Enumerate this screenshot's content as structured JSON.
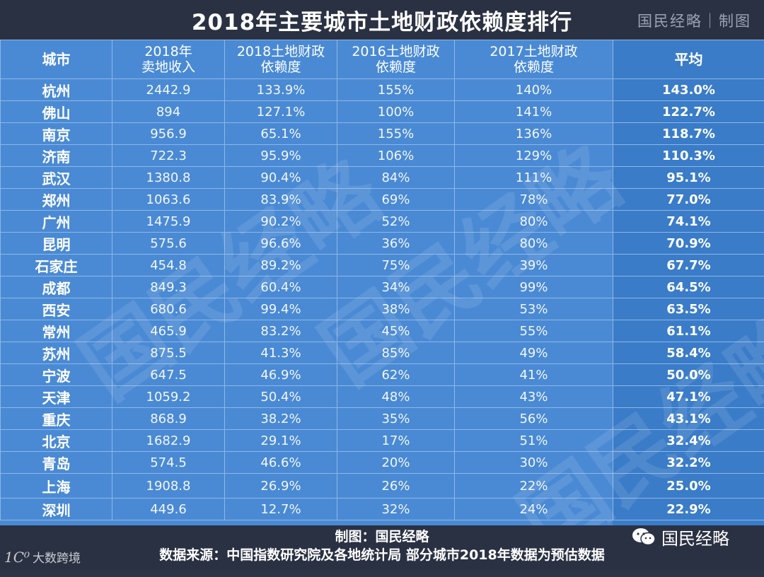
{
  "header": {
    "title": "2018年主要城市土地财政依赖度排行",
    "brand": "国民经略｜制图"
  },
  "chart_data": {
    "type": "table",
    "title": "2018年主要城市土地财政依赖度排行",
    "columns": [
      "城市",
      "2018年 卖地收入",
      "2018土地财政 依赖度",
      "2016土地财政 依赖度",
      "2017土地财政 依赖度",
      "平均"
    ],
    "rows": [
      [
        "杭州",
        "2442.9",
        "133.9%",
        "155%",
        "140%",
        "143.0%"
      ],
      [
        "佛山",
        "894",
        "127.1%",
        "100%",
        "141%",
        "122.7%"
      ],
      [
        "南京",
        "956.9",
        "65.1%",
        "155%",
        "136%",
        "118.7%"
      ],
      [
        "济南",
        "722.3",
        "95.9%",
        "106%",
        "129%",
        "110.3%"
      ],
      [
        "武汉",
        "1380.8",
        "90.4%",
        "84%",
        "111%",
        "95.1%"
      ],
      [
        "郑州",
        "1063.6",
        "83.9%",
        "69%",
        "78%",
        "77.0%"
      ],
      [
        "广州",
        "1475.9",
        "90.2%",
        "52%",
        "80%",
        "74.1%"
      ],
      [
        "昆明",
        "575.6",
        "96.6%",
        "36%",
        "80%",
        "70.9%"
      ],
      [
        "石家庄",
        "454.8",
        "89.2%",
        "75%",
        "39%",
        "67.7%"
      ],
      [
        "成都",
        "849.3",
        "60.4%",
        "34%",
        "99%",
        "64.5%"
      ],
      [
        "西安",
        "680.6",
        "99.4%",
        "38%",
        "53%",
        "63.5%"
      ],
      [
        "常州",
        "465.9",
        "83.2%",
        "45%",
        "55%",
        "61.1%"
      ],
      [
        "苏州",
        "875.5",
        "41.3%",
        "85%",
        "49%",
        "58.4%"
      ],
      [
        "宁波",
        "647.5",
        "46.9%",
        "62%",
        "41%",
        "50.0%"
      ],
      [
        "天津",
        "1059.2",
        "50.4%",
        "48%",
        "43%",
        "47.1%"
      ],
      [
        "重庆",
        "868.9",
        "38.2%",
        "35%",
        "56%",
        "43.1%"
      ],
      [
        "北京",
        "1682.9",
        "29.1%",
        "17%",
        "51%",
        "32.4%"
      ],
      [
        "青岛",
        "574.5",
        "46.6%",
        "20%",
        "30%",
        "32.2%"
      ],
      [
        "上海",
        "1908.8",
        "26.9%",
        "26%",
        "22%",
        "25.0%"
      ],
      [
        "深圳",
        "449.6",
        "12.7%",
        "32%",
        "24%",
        "22.9%"
      ]
    ]
  },
  "footer": {
    "credit": "制图：国民经略",
    "source": "数据来源：中国指数研究院及各地统计局  部分城市2018年数据为预估数据",
    "wechat_name": "国民经略",
    "corner_logo_mark": "1C⁰",
    "corner_logo_text": "大数跨境"
  },
  "watermark_text": "国民经略",
  "colors": {
    "background": "#2d3445",
    "table": "#4a8ad4",
    "avg_column": "#3a7cc8",
    "grid_line": "#8fb6e6"
  },
  "icons": {
    "wechat": "wechat-icon"
  }
}
